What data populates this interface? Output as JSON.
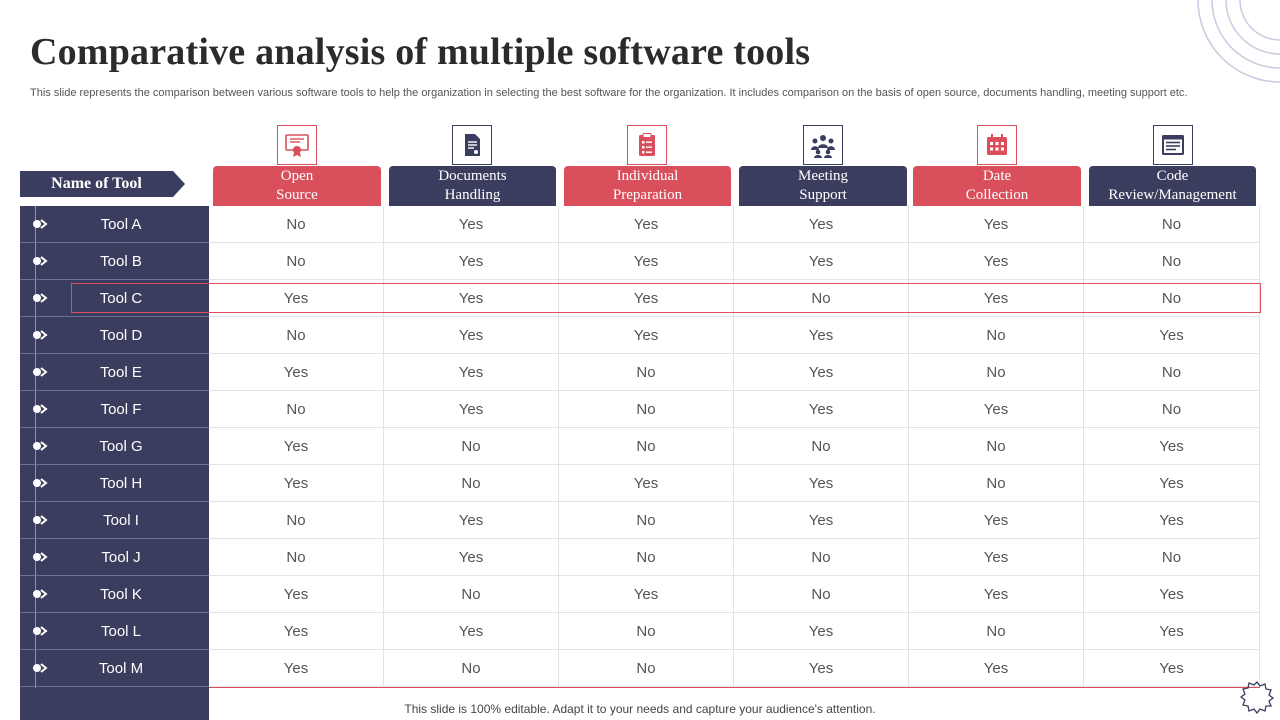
{
  "title": "Comparative analysis of multiple software tools",
  "subtitle": "This slide represents the comparison between various software tools to help the organization in selecting the best software for the organization. It includes comparison on the basis of open source, documents handling, meeting support etc.",
  "name_header": "Name of Tool",
  "colors": {
    "navy": "#3b3d5f",
    "red": "#d9505c"
  },
  "columns": [
    {
      "label": "Open\nSource",
      "icon": "certificate-icon",
      "color": "red"
    },
    {
      "label": "Documents\nHandling",
      "icon": "document-icon",
      "color": "navy"
    },
    {
      "label": "Individual\nPreparation",
      "icon": "clipboard-icon",
      "color": "red"
    },
    {
      "label": "Meeting\nSupport",
      "icon": "team-meeting-icon",
      "color": "navy"
    },
    {
      "label": "Date\nCollection",
      "icon": "calendar-icon",
      "color": "red"
    },
    {
      "label": "Code\nReview/Management",
      "icon": "code-window-icon",
      "color": "navy"
    }
  ],
  "rows": [
    {
      "tool": "Tool A",
      "values": [
        "No",
        "Yes",
        "Yes",
        "Yes",
        "Yes",
        "No"
      ]
    },
    {
      "tool": "Tool B",
      "values": [
        "No",
        "Yes",
        "Yes",
        "Yes",
        "Yes",
        "No"
      ]
    },
    {
      "tool": "Tool C",
      "values": [
        "Yes",
        "Yes",
        "Yes",
        "No",
        "Yes",
        "No"
      ]
    },
    {
      "tool": "Tool D",
      "values": [
        "No",
        "Yes",
        "Yes",
        "Yes",
        "No",
        "Yes"
      ]
    },
    {
      "tool": "Tool E",
      "values": [
        "Yes",
        "Yes",
        "No",
        "Yes",
        "No",
        "No"
      ]
    },
    {
      "tool": "Tool F",
      "values": [
        "No",
        "Yes",
        "No",
        "Yes",
        "Yes",
        "No"
      ]
    },
    {
      "tool": "Tool G",
      "values": [
        "Yes",
        "No",
        "No",
        "No",
        "No",
        "Yes"
      ]
    },
    {
      "tool": "Tool H",
      "values": [
        "Yes",
        "No",
        "Yes",
        "Yes",
        "No",
        "Yes"
      ]
    },
    {
      "tool": "Tool I",
      "values": [
        "No",
        "Yes",
        "No",
        "Yes",
        "Yes",
        "Yes"
      ]
    },
    {
      "tool": "Tool J",
      "values": [
        "No",
        "Yes",
        "No",
        "No",
        "Yes",
        "No"
      ]
    },
    {
      "tool": "Tool K",
      "values": [
        "Yes",
        "No",
        "Yes",
        "No",
        "Yes",
        "Yes"
      ]
    },
    {
      "tool": "Tool L",
      "values": [
        "Yes",
        "Yes",
        "No",
        "Yes",
        "No",
        "Yes"
      ]
    },
    {
      "tool": "Tool M",
      "values": [
        "Yes",
        "No",
        "No",
        "Yes",
        "Yes",
        "Yes"
      ]
    }
  ],
  "highlighted_row": "Tool C",
  "footer": "This slide is 100% editable. Adapt it to your needs and capture your audience's attention."
}
